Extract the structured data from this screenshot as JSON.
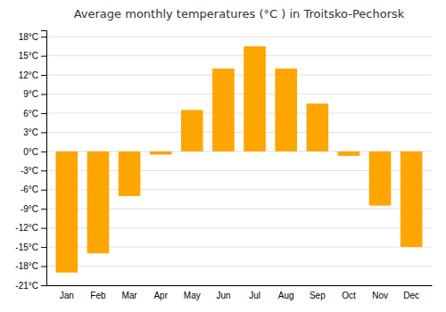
{
  "chart_data": {
    "type": "bar",
    "title": "Average monthly temperatures (°C ) in Troitsko-Pechorsk",
    "categories": [
      "Jan",
      "Feb",
      "Mar",
      "Apr",
      "May",
      "Jun",
      "Jul",
      "Aug",
      "Sep",
      "Oct",
      "Nov",
      "Dec"
    ],
    "values": [
      -19.0,
      -16.0,
      -7.0,
      -0.5,
      6.5,
      13.0,
      16.5,
      13.0,
      7.5,
      -0.7,
      -8.5,
      -15.0
    ],
    "color": "#FFA500",
    "ylim": [
      -21,
      19
    ],
    "yticks": [
      {
        "value": -21,
        "label": "-21°C"
      },
      {
        "value": -18,
        "label": "-18°C"
      },
      {
        "value": -15,
        "label": "-15°C"
      },
      {
        "value": -12,
        "label": "-12°C"
      },
      {
        "value": -9,
        "label": "-9°C"
      },
      {
        "value": -6,
        "label": "-6°C"
      },
      {
        "value": -3,
        "label": "-3°C"
      },
      {
        "value": 0,
        "label": "0°C"
      },
      {
        "value": 3,
        "label": "3°C"
      },
      {
        "value": 6,
        "label": "6°C"
      },
      {
        "value": 9,
        "label": "9°C"
      },
      {
        "value": 12,
        "label": "12°C"
      },
      {
        "value": 15,
        "label": "15°C"
      },
      {
        "value": 18,
        "label": "18°C"
      }
    ],
    "grid": true
  }
}
